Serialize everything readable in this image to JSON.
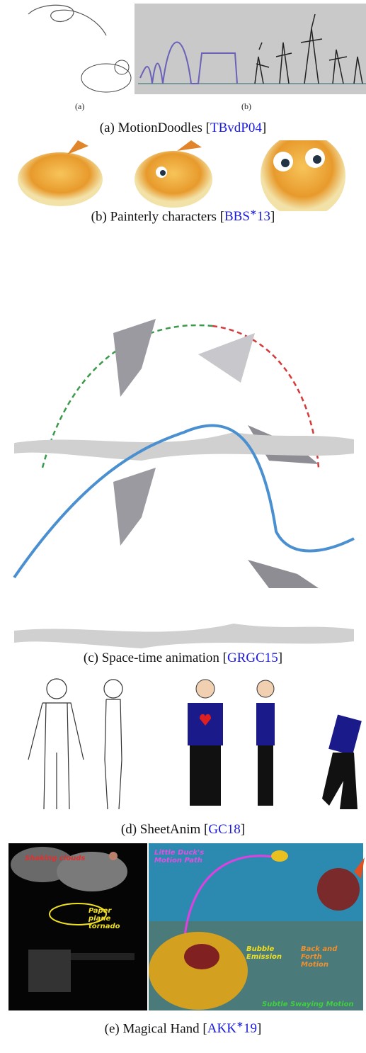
{
  "figure": {
    "panels": [
      {
        "sublabels": [
          "(a)",
          "(b)"
        ],
        "caption": {
          "prefix": "(a) MotionDoodles [",
          "cite": "TBvdP04",
          "suffix": "]"
        }
      },
      {
        "caption": {
          "prefix": "(b) Painterly characters [",
          "cite": "BBS",
          "cite_sup": "∗",
          "cite_end": "13",
          "suffix": "]"
        }
      },
      {
        "caption": {
          "prefix": "(c) Space-time animation [",
          "cite": "GRGC15",
          "suffix": "]"
        }
      },
      {
        "caption": {
          "prefix": "(d) SheetAnim [",
          "cite": "GC18",
          "suffix": "]"
        }
      },
      {
        "caption": {
          "prefix": "(e) Magical Hand [",
          "cite": "AKK",
          "cite_sup": "∗",
          "cite_end": "19",
          "suffix": "]"
        },
        "annotations": [
          "Shaking clouds",
          "Paper plane tornado",
          "Little Duck's Motion Path",
          "Bubble Emission",
          "Back and Forth Motion",
          "Subtle Swaying Motion"
        ]
      }
    ]
  }
}
